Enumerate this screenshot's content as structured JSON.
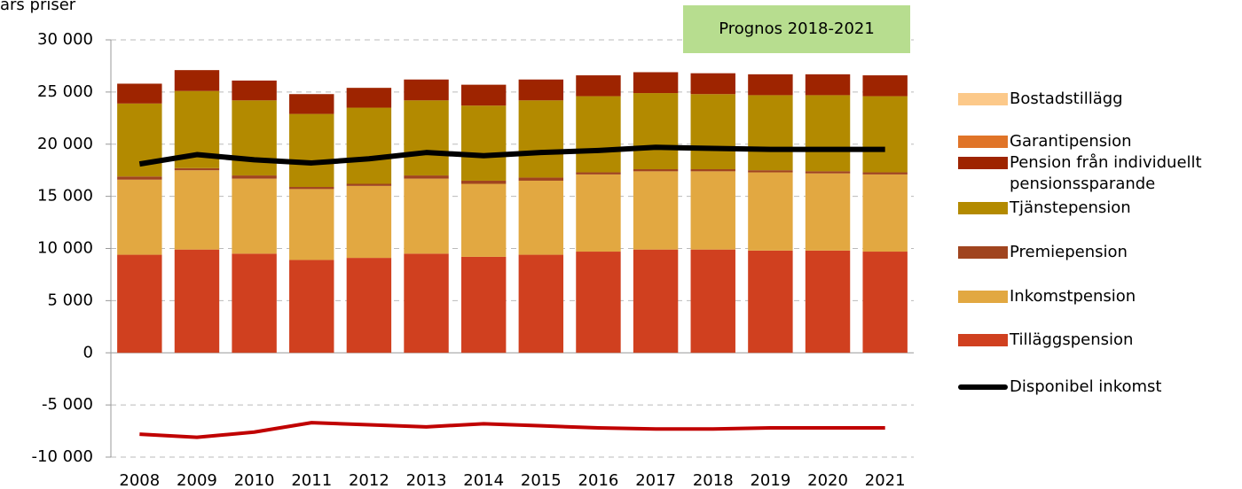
{
  "chart_data": {
    "type": "bar",
    "stacked": true,
    "y_label": "års priser",
    "annotation": "Prognos 2018-2021",
    "annotation_color": "#b7dd8f",
    "categories": [
      "2008",
      "2009",
      "2010",
      "2011",
      "2012",
      "2013",
      "2014",
      "2015",
      "2016",
      "2017",
      "2018",
      "2019",
      "2020",
      "2021"
    ],
    "series": [
      {
        "name": "Tilläggspension",
        "color": "#d0401f",
        "values": [
          9400,
          9900,
          9500,
          8900,
          9100,
          9500,
          9200,
          9400,
          9700,
          9900,
          9900,
          9800,
          9800,
          9700
        ]
      },
      {
        "name": "Inkomstpension",
        "color": "#e2a841",
        "values": [
          7200,
          7600,
          7200,
          6800,
          6900,
          7200,
          7000,
          7100,
          7400,
          7500,
          7500,
          7500,
          7400,
          7400
        ]
      },
      {
        "name": "Premiepension",
        "color": "#a0441f",
        "values": [
          300,
          200,
          300,
          200,
          200,
          300,
          300,
          300,
          200,
          200,
          200,
          200,
          200,
          200
        ]
      },
      {
        "name": "Tjänstepension",
        "color": "#b38a00",
        "values": [
          7000,
          7400,
          7200,
          7000,
          7300,
          7200,
          7200,
          7400,
          7300,
          7300,
          7200,
          7200,
          7300,
          7300
        ]
      },
      {
        "name": "Pension från individuellt pensionssparande",
        "color": "#9e2400",
        "values": [
          1900,
          2000,
          1900,
          1900,
          1900,
          2000,
          2000,
          2000,
          2000,
          2000,
          2000,
          2000,
          2000,
          2000
        ]
      },
      {
        "name": "Garantipension",
        "color": "#e07428",
        "values": [
          0,
          0,
          0,
          0,
          0,
          0,
          0,
          0,
          0,
          0,
          0,
          0,
          0,
          0
        ]
      },
      {
        "name": "Bostadstillägg",
        "color": "#fcc98a",
        "values": [
          0,
          0,
          0,
          0,
          0,
          0,
          0,
          0,
          0,
          0,
          0,
          0,
          0,
          0
        ]
      },
      {
        "name": "Disponibel inkomst",
        "type": "line",
        "color": "#000000",
        "values": [
          18100,
          19000,
          18500,
          18200,
          18600,
          19200,
          18900,
          19200,
          19400,
          19700,
          19600,
          19500,
          19500,
          19500
        ]
      },
      {
        "type": "line",
        "color": "#c00000",
        "values": [
          -7800,
          -8100,
          -7600,
          -6700,
          -6900,
          -7100,
          -6800,
          -7000,
          -7200,
          -7300,
          -7300,
          -7200,
          -7200,
          -7200
        ]
      }
    ],
    "ylim": [
      -10000,
      30000
    ],
    "yticks": [
      {
        "value": -10000,
        "label": "-10 000"
      },
      {
        "value": -5000,
        "label": "-5 000"
      },
      0,
      {
        "value": 5000,
        "label": "5 000"
      },
      {
        "value": 10000,
        "label": "10 000"
      },
      {
        "value": 15000,
        "label": "15 000"
      },
      {
        "value": 20000,
        "label": "20 000"
      },
      {
        "value": 25000,
        "label": "25 000"
      },
      {
        "value": 30000,
        "label": "30 000"
      }
    ],
    "grid": true
  }
}
